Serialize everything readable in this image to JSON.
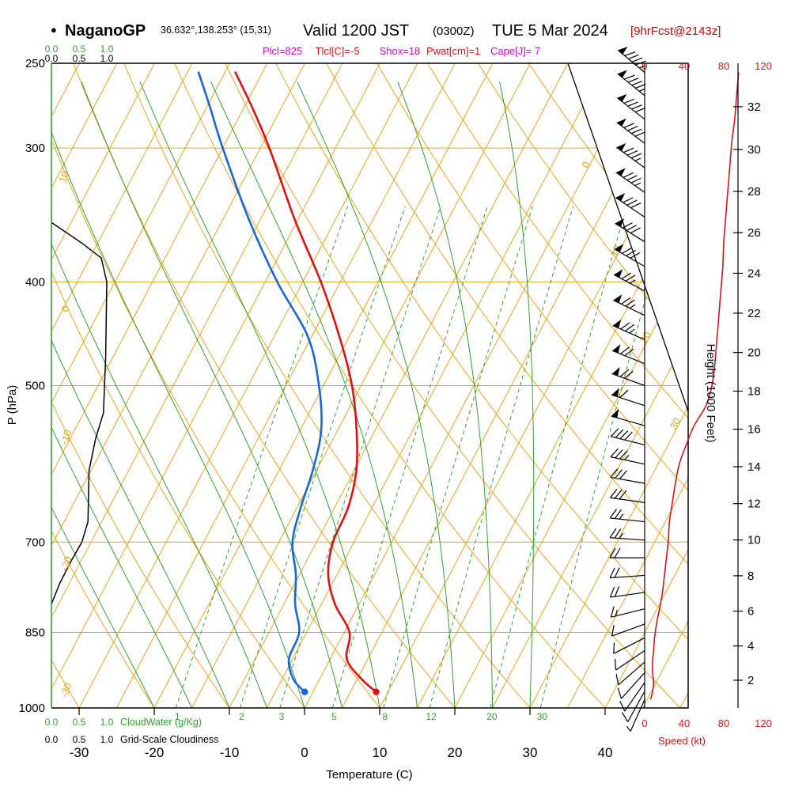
{
  "header": {
    "bullet": "●",
    "station": "NaganoGP",
    "coords": "36.632°,138.253° (15,31)",
    "valid": "Valid 1200 JST",
    "valid_z": "(0300Z)",
    "date": "TUE 5 Mar 2024",
    "fcst_tag": "[9hrFcst@2143z]"
  },
  "params_line": [
    {
      "text": "Plcl=825",
      "color": "#cc00cc"
    },
    {
      "text": "Tlcl[C]=-5",
      "color": "#dd1111"
    },
    {
      "text": "Shox=18",
      "color": "#cc00cc"
    },
    {
      "text": "Pwat[cm]=1",
      "color": "#dd1111"
    },
    {
      "text": "Cape[J]= 7",
      "color": "#cc00cc"
    }
  ],
  "labels": {
    "pressure_axis": "P (hPa)",
    "temperature_axis": "Temperature (C)",
    "height_axis": "Height (1000 Feet)",
    "speed_axis": "Speed (kt)",
    "cloud_water": "CloudWater (g/Kg)",
    "grid_cloudiness": "Grid-Scale Cloudiness"
  },
  "scales": {
    "cloud_fraction_ticks": [
      "0.0",
      "0.5",
      "1.0"
    ]
  },
  "colors": {
    "isotherm_orange": "#e8a417",
    "green": "#2fa12f",
    "temp_red": "#e01010",
    "dewpoint_blue": "#1668d8",
    "speed_red": "#d01515",
    "magenta": "#cc00cc",
    "forecast_red": "#cc0000"
  },
  "chart_data": {
    "type": "skew-t log-p sounding",
    "pressure_ticks_hpa": [
      250,
      300,
      400,
      500,
      700,
      850,
      1000
    ],
    "temperature_ticks_c": [
      -30,
      -20,
      -10,
      0,
      10,
      20,
      30,
      40
    ],
    "height_ticks_kft": [
      2,
      4,
      6,
      8,
      10,
      12,
      14,
      16,
      18,
      20,
      22,
      24,
      26,
      28,
      30,
      32
    ],
    "speed_ticks_kt": [
      0,
      40,
      80,
      120
    ],
    "isotherm_labels_c": [
      0,
      10,
      20,
      30
    ],
    "dry_adiabat_labels_c": [
      10,
      0,
      -10,
      -20,
      -30
    ],
    "mixing_ratio_lines_gkg": [
      1,
      2,
      3,
      5,
      8,
      12,
      20,
      30
    ],
    "surface": {
      "pressure_hpa": 966,
      "temperature_c": 8.4,
      "dewpoint_c": -1.1
    },
    "temperature_profile": [
      [
        966,
        8.4
      ],
      [
        940,
        5.6
      ],
      [
        900,
        2.2
      ],
      [
        850,
        0.7
      ],
      [
        800,
        -3.2
      ],
      [
        750,
        -6.2
      ],
      [
        700,
        -7.8
      ],
      [
        650,
        -8.2
      ],
      [
        600,
        -9.7
      ],
      [
        550,
        -12.5
      ],
      [
        500,
        -16.2
      ],
      [
        450,
        -21.3
      ],
      [
        400,
        -27.6
      ],
      [
        350,
        -35.4
      ],
      [
        300,
        -43.8
      ],
      [
        275,
        -48.9
      ],
      [
        255,
        -53.6
      ]
    ],
    "dewpoint_profile": [
      [
        966,
        -1.1
      ],
      [
        940,
        -3.5
      ],
      [
        900,
        -5.5
      ],
      [
        850,
        -6.0
      ],
      [
        800,
        -8.5
      ],
      [
        750,
        -10.5
      ],
      [
        700,
        -13.2
      ],
      [
        650,
        -14.5
      ],
      [
        600,
        -15.5
      ],
      [
        550,
        -17.2
      ],
      [
        500,
        -20.6
      ],
      [
        450,
        -25.5
      ],
      [
        400,
        -33.4
      ],
      [
        350,
        -41.5
      ],
      [
        300,
        -50.0
      ],
      [
        275,
        -54.5
      ],
      [
        255,
        -58.5
      ]
    ],
    "wind_profile": [
      [
        255,
        95,
        310
      ],
      [
        268,
        93,
        309
      ],
      [
        282,
        91,
        308
      ],
      [
        297,
        88,
        307
      ],
      [
        313,
        86,
        306
      ],
      [
        330,
        84,
        305
      ],
      [
        348,
        82,
        304
      ],
      [
        367,
        80,
        302
      ],
      [
        387,
        79,
        300
      ],
      [
        408,
        77,
        298
      ],
      [
        430,
        75,
        296
      ],
      [
        453,
        73,
        294
      ],
      [
        477,
        71,
        292
      ],
      [
        500,
        68,
        290
      ],
      [
        522,
        62,
        288
      ],
      [
        545,
        50,
        286
      ],
      [
        568,
        42,
        284
      ],
      [
        592,
        35,
        282
      ],
      [
        617,
        31,
        280
      ],
      [
        643,
        28,
        278
      ],
      [
        670,
        25,
        276
      ],
      [
        697,
        24,
        274
      ],
      [
        724,
        22,
        270
      ],
      [
        752,
        20,
        266
      ],
      [
        780,
        18,
        262
      ],
      [
        808,
        15,
        256
      ],
      [
        835,
        12,
        250
      ],
      [
        860,
        10,
        243
      ],
      [
        884,
        9,
        236
      ],
      [
        906,
        8,
        229
      ],
      [
        927,
        8,
        222
      ],
      [
        947,
        9,
        215
      ],
      [
        965,
        8,
        209
      ],
      [
        982,
        6,
        204
      ]
    ],
    "cloudiness_profile": [
      [
        352,
        0
      ],
      [
        368,
        0.55
      ],
      [
        380,
        0.9
      ],
      [
        400,
        1.0
      ],
      [
        470,
        0.98
      ],
      [
        530,
        0.94
      ],
      [
        560,
        0.8
      ],
      [
        600,
        0.68
      ],
      [
        670,
        0.66
      ],
      [
        700,
        0.55
      ],
      [
        730,
        0.35
      ],
      [
        765,
        0.15
      ],
      [
        800,
        0
      ]
    ],
    "cloud_water_profile_gkg": 0,
    "stability": {
      "plcl_hpa": 825,
      "tlcl_c": -5,
      "showalter": 18,
      "pwat_cm": 1,
      "cape_j": 7
    }
  }
}
